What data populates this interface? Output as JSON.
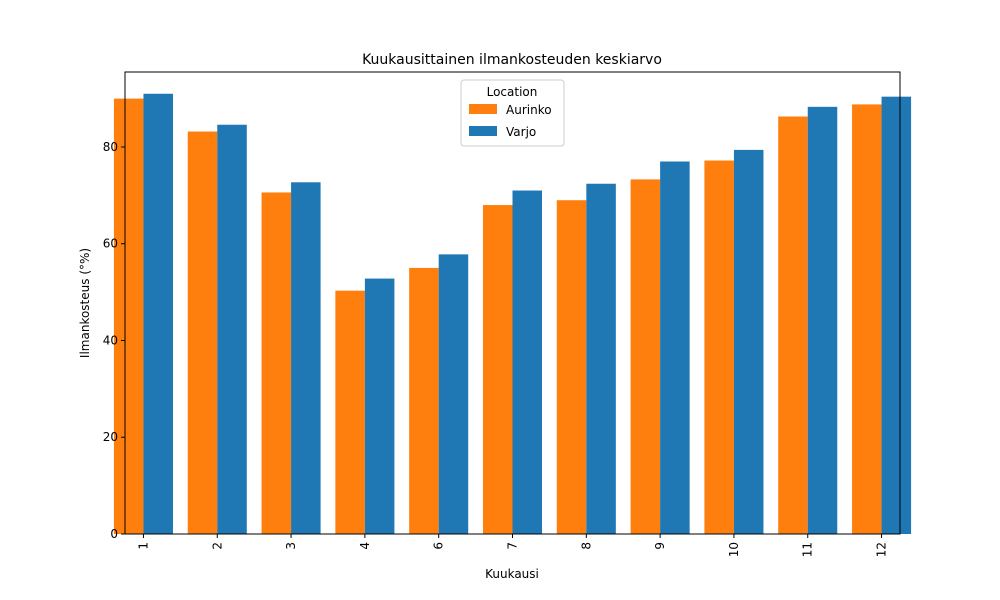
{
  "chart_data": {
    "type": "bar",
    "title": "Kuukausittainen ilmankosteuden keskiarvo",
    "xlabel": "Kuukausi",
    "ylabel": "Ilmankosteus (°%)",
    "categories": [
      "1",
      "2",
      "3",
      "4",
      "6",
      "7",
      "8",
      "9",
      "10",
      "11",
      "12"
    ],
    "series": [
      {
        "name": "Aurinko",
        "color": "#ff7f0e",
        "values": [
          90.0,
          83.2,
          70.6,
          50.3,
          55.0,
          68.0,
          69.0,
          73.3,
          77.2,
          86.3,
          88.8
        ]
      },
      {
        "name": "Varjo",
        "color": "#1f77b4",
        "values": [
          91.0,
          84.6,
          72.7,
          52.8,
          57.8,
          71.0,
          72.4,
          77.0,
          79.4,
          88.3,
          90.4
        ]
      }
    ],
    "ylim": [
      0,
      95.5
    ],
    "yticks": [
      0,
      20,
      40,
      60,
      80
    ],
    "legend": {
      "title": "Location",
      "position": "upper-center"
    },
    "grid": false
  }
}
